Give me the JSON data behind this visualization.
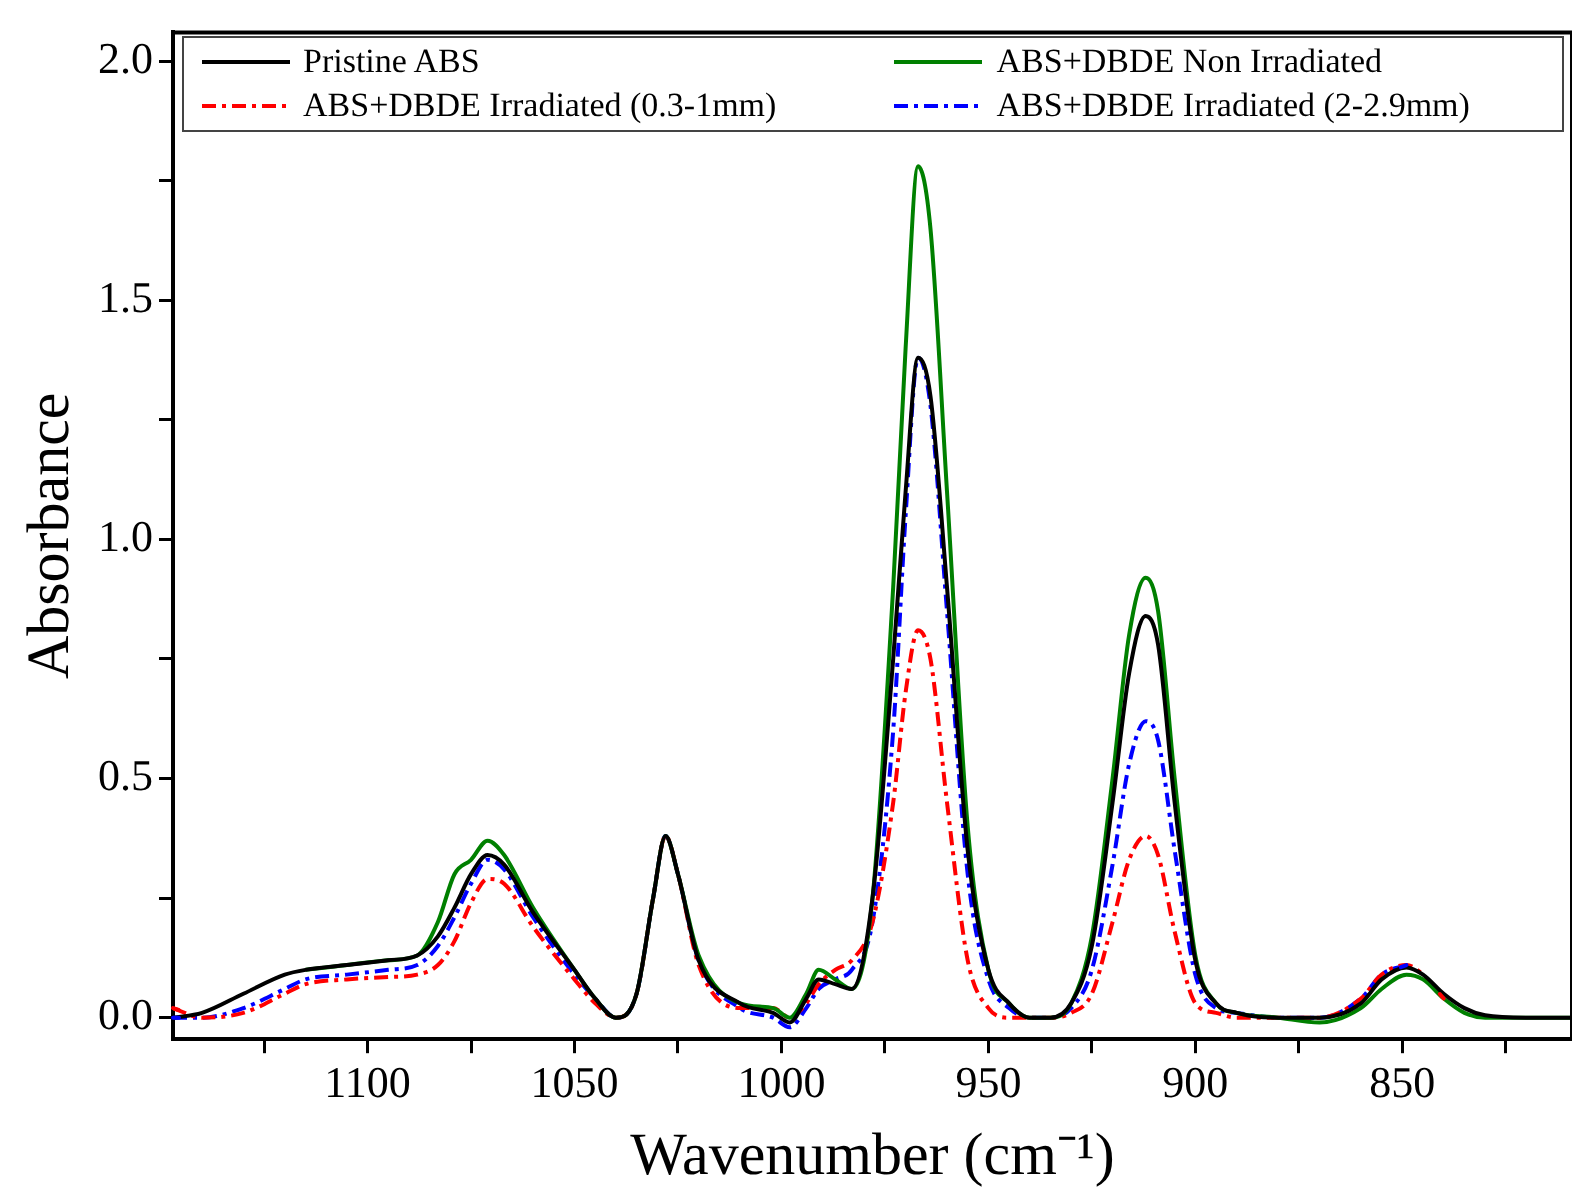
{
  "chart_data": {
    "type": "line",
    "xlabel": "Wavenumber (cm⁻¹)",
    "ylabel": "Absorbance",
    "xlim": [
      1147,
      809
    ],
    "ylim": [
      -0.045,
      2.06
    ],
    "xticks": [
      {
        "value": 1125,
        "label": null
      },
      1100,
      {
        "value": 1075,
        "label": null
      },
      1050,
      {
        "value": 1025,
        "label": null
      },
      1000,
      {
        "value": 975,
        "label": null
      },
      950,
      {
        "value": 925,
        "label": null
      },
      900,
      {
        "value": 875,
        "label": null
      },
      850,
      {
        "value": 825,
        "label": null
      }
    ],
    "yticks": [
      {
        "value": 0,
        "label": "0.0"
      },
      {
        "value": 0.25,
        "label": null
      },
      0.5,
      {
        "value": 0.75,
        "label": null
      },
      {
        "value": 1,
        "label": "1.0"
      },
      {
        "value": 1.25,
        "label": null
      },
      1.5,
      {
        "value": 1.75,
        "label": null
      },
      {
        "value": 2,
        "label": "2.0"
      }
    ],
    "grid": false,
    "legend": "top",
    "marker": "none",
    "x": [
      1147,
      1140,
      1130,
      1120,
      1115,
      1105,
      1095,
      1088,
      1083,
      1079,
      1075,
      1071,
      1067,
      1060,
      1050,
      1045,
      1040,
      1035,
      1031,
      1028,
      1025,
      1020,
      1010,
      1002,
      998,
      994,
      991,
      987,
      983,
      978,
      973,
      970,
      967,
      964,
      960,
      955,
      950,
      945,
      940,
      935,
      930,
      925,
      920,
      916,
      912,
      909,
      905,
      900,
      895,
      890,
      880,
      870,
      860,
      855,
      849,
      845,
      840,
      835,
      830,
      820,
      809
    ],
    "series": [
      {
        "name": "Pristine ABS",
        "color": "#000000",
        "line_style": "solid",
        "values": [
          0.0,
          0.01,
          0.05,
          0.09,
          0.1,
          0.11,
          0.12,
          0.13,
          0.17,
          0.23,
          0.3,
          0.34,
          0.32,
          0.22,
          0.1,
          0.04,
          0.0,
          0.05,
          0.25,
          0.38,
          0.3,
          0.12,
          0.03,
          0.01,
          -0.01,
          0.04,
          0.08,
          0.07,
          0.06,
          0.25,
          0.75,
          1.1,
          1.38,
          1.3,
          0.9,
          0.35,
          0.1,
          0.03,
          0.0,
          0.0,
          0.03,
          0.15,
          0.45,
          0.72,
          0.84,
          0.78,
          0.45,
          0.12,
          0.03,
          0.01,
          0.0,
          0.0,
          0.03,
          0.08,
          0.105,
          0.09,
          0.05,
          0.02,
          0.005,
          0.0,
          0.0
        ]
      },
      {
        "name": "ABS+DBDE Non Irradiated",
        "color": "#008000",
        "line_style": "solid",
        "values": [
          null,
          null,
          null,
          null,
          0.1,
          0.11,
          0.12,
          0.13,
          0.2,
          0.3,
          0.33,
          0.37,
          0.34,
          0.23,
          0.1,
          0.04,
          0.0,
          0.05,
          0.25,
          0.38,
          0.3,
          0.13,
          0.03,
          0.02,
          0.0,
          0.05,
          0.1,
          0.08,
          0.06,
          0.25,
          0.9,
          1.4,
          1.78,
          1.65,
          1.1,
          0.4,
          0.1,
          0.03,
          0.0,
          0.0,
          0.03,
          0.17,
          0.5,
          0.8,
          0.92,
          0.85,
          0.5,
          0.13,
          0.03,
          0.01,
          0.0,
          -0.01,
          0.02,
          0.06,
          0.09,
          0.08,
          0.04,
          0.01,
          0.0,
          0.0,
          0.0
        ]
      },
      {
        "name": "ABS+DBDE Irradiated (0.3-1mm)",
        "color": "#ff0000",
        "line_style": "dashdot",
        "values": [
          0.02,
          0.0,
          0.01,
          0.05,
          0.07,
          0.08,
          0.085,
          0.09,
          0.11,
          0.16,
          0.24,
          0.29,
          0.28,
          0.19,
          0.08,
          0.03,
          0.0,
          0.05,
          0.25,
          0.38,
          0.3,
          0.11,
          0.02,
          0.02,
          0.0,
          0.03,
          0.07,
          0.1,
          0.12,
          0.2,
          0.45,
          0.68,
          0.81,
          0.75,
          0.45,
          0.12,
          0.02,
          0.0,
          0.0,
          0.0,
          0.01,
          0.05,
          0.2,
          0.33,
          0.38,
          0.34,
          0.18,
          0.03,
          0.01,
          0.0,
          0.0,
          0.0,
          0.04,
          0.09,
          0.11,
          0.09,
          0.04,
          null,
          null,
          null,
          null
        ]
      },
      {
        "name": "ABS+DBDE Irradiated (2-2.9mm)",
        "color": "#0000ff",
        "line_style": "dashdot",
        "values": [
          0.0,
          0.0,
          0.02,
          0.06,
          0.08,
          0.09,
          0.1,
          0.11,
          0.15,
          0.21,
          0.28,
          0.33,
          0.31,
          0.21,
          0.09,
          0.04,
          0.0,
          0.05,
          0.25,
          0.38,
          0.3,
          0.12,
          0.02,
          0.0,
          -0.02,
          0.02,
          0.06,
          0.08,
          0.1,
          0.2,
          0.6,
          1.05,
          1.38,
          1.28,
          0.85,
          0.3,
          0.08,
          0.02,
          0.0,
          0.0,
          0.02,
          0.1,
          0.32,
          0.53,
          0.62,
          0.58,
          0.35,
          0.09,
          0.02,
          0.01,
          0.0,
          0.0,
          0.04,
          0.09,
          0.11,
          null,
          null,
          null,
          null,
          null,
          null
        ]
      }
    ]
  }
}
